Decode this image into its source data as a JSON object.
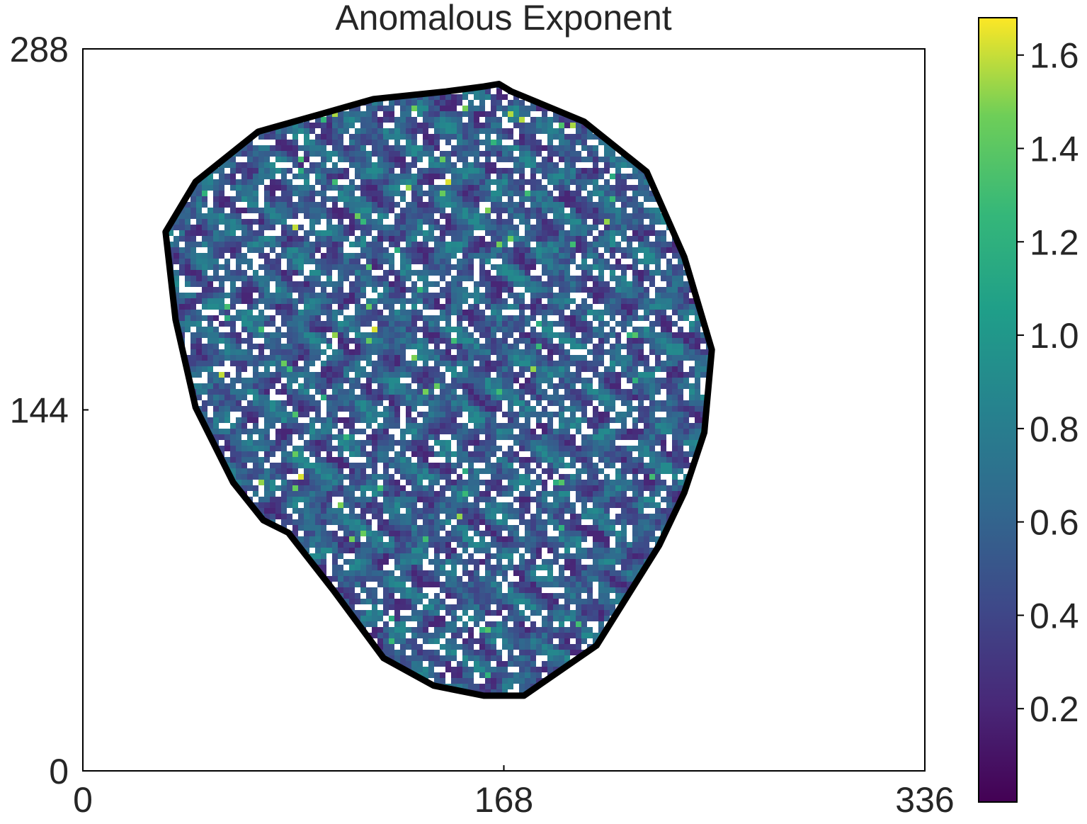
{
  "chart_data": {
    "type": "heatmap",
    "title": "Anomalous Exponent",
    "xlabel": "",
    "ylabel": "",
    "x_ticks": [
      0,
      168,
      336
    ],
    "y_ticks": [
      0,
      144,
      288
    ],
    "xlim": [
      0,
      336
    ],
    "ylim": [
      0,
      288
    ],
    "colorbar": {
      "colormap": "viridis",
      "range": [
        0.0,
        1.68
      ],
      "ticks": [
        0.2,
        0.4,
        0.6,
        0.8,
        1.0,
        1.2,
        1.4,
        1.6
      ]
    },
    "mask_outline_color": "#000000",
    "missing_value_color": "#ffffff",
    "typical_value_range": [
      0.2,
      0.9
    ],
    "boundary_polygon": [
      [
        116,
        268
      ],
      [
        145,
        271
      ],
      [
        160,
        273
      ],
      [
        166,
        274
      ],
      [
        171,
        271
      ],
      [
        200,
        259
      ],
      [
        225,
        239
      ],
      [
        240,
        205
      ],
      [
        251,
        168
      ],
      [
        248,
        135
      ],
      [
        240,
        111
      ],
      [
        230,
        90
      ],
      [
        205,
        50
      ],
      [
        176,
        30
      ],
      [
        160,
        30
      ],
      [
        140,
        34
      ],
      [
        120,
        45
      ],
      [
        100,
        72
      ],
      [
        82,
        95
      ],
      [
        72,
        100
      ],
      [
        60,
        115
      ],
      [
        45,
        145
      ],
      [
        37,
        180
      ],
      [
        33,
        215
      ],
      [
        45,
        235
      ],
      [
        70,
        255
      ],
      [
        95,
        262
      ]
    ]
  }
}
